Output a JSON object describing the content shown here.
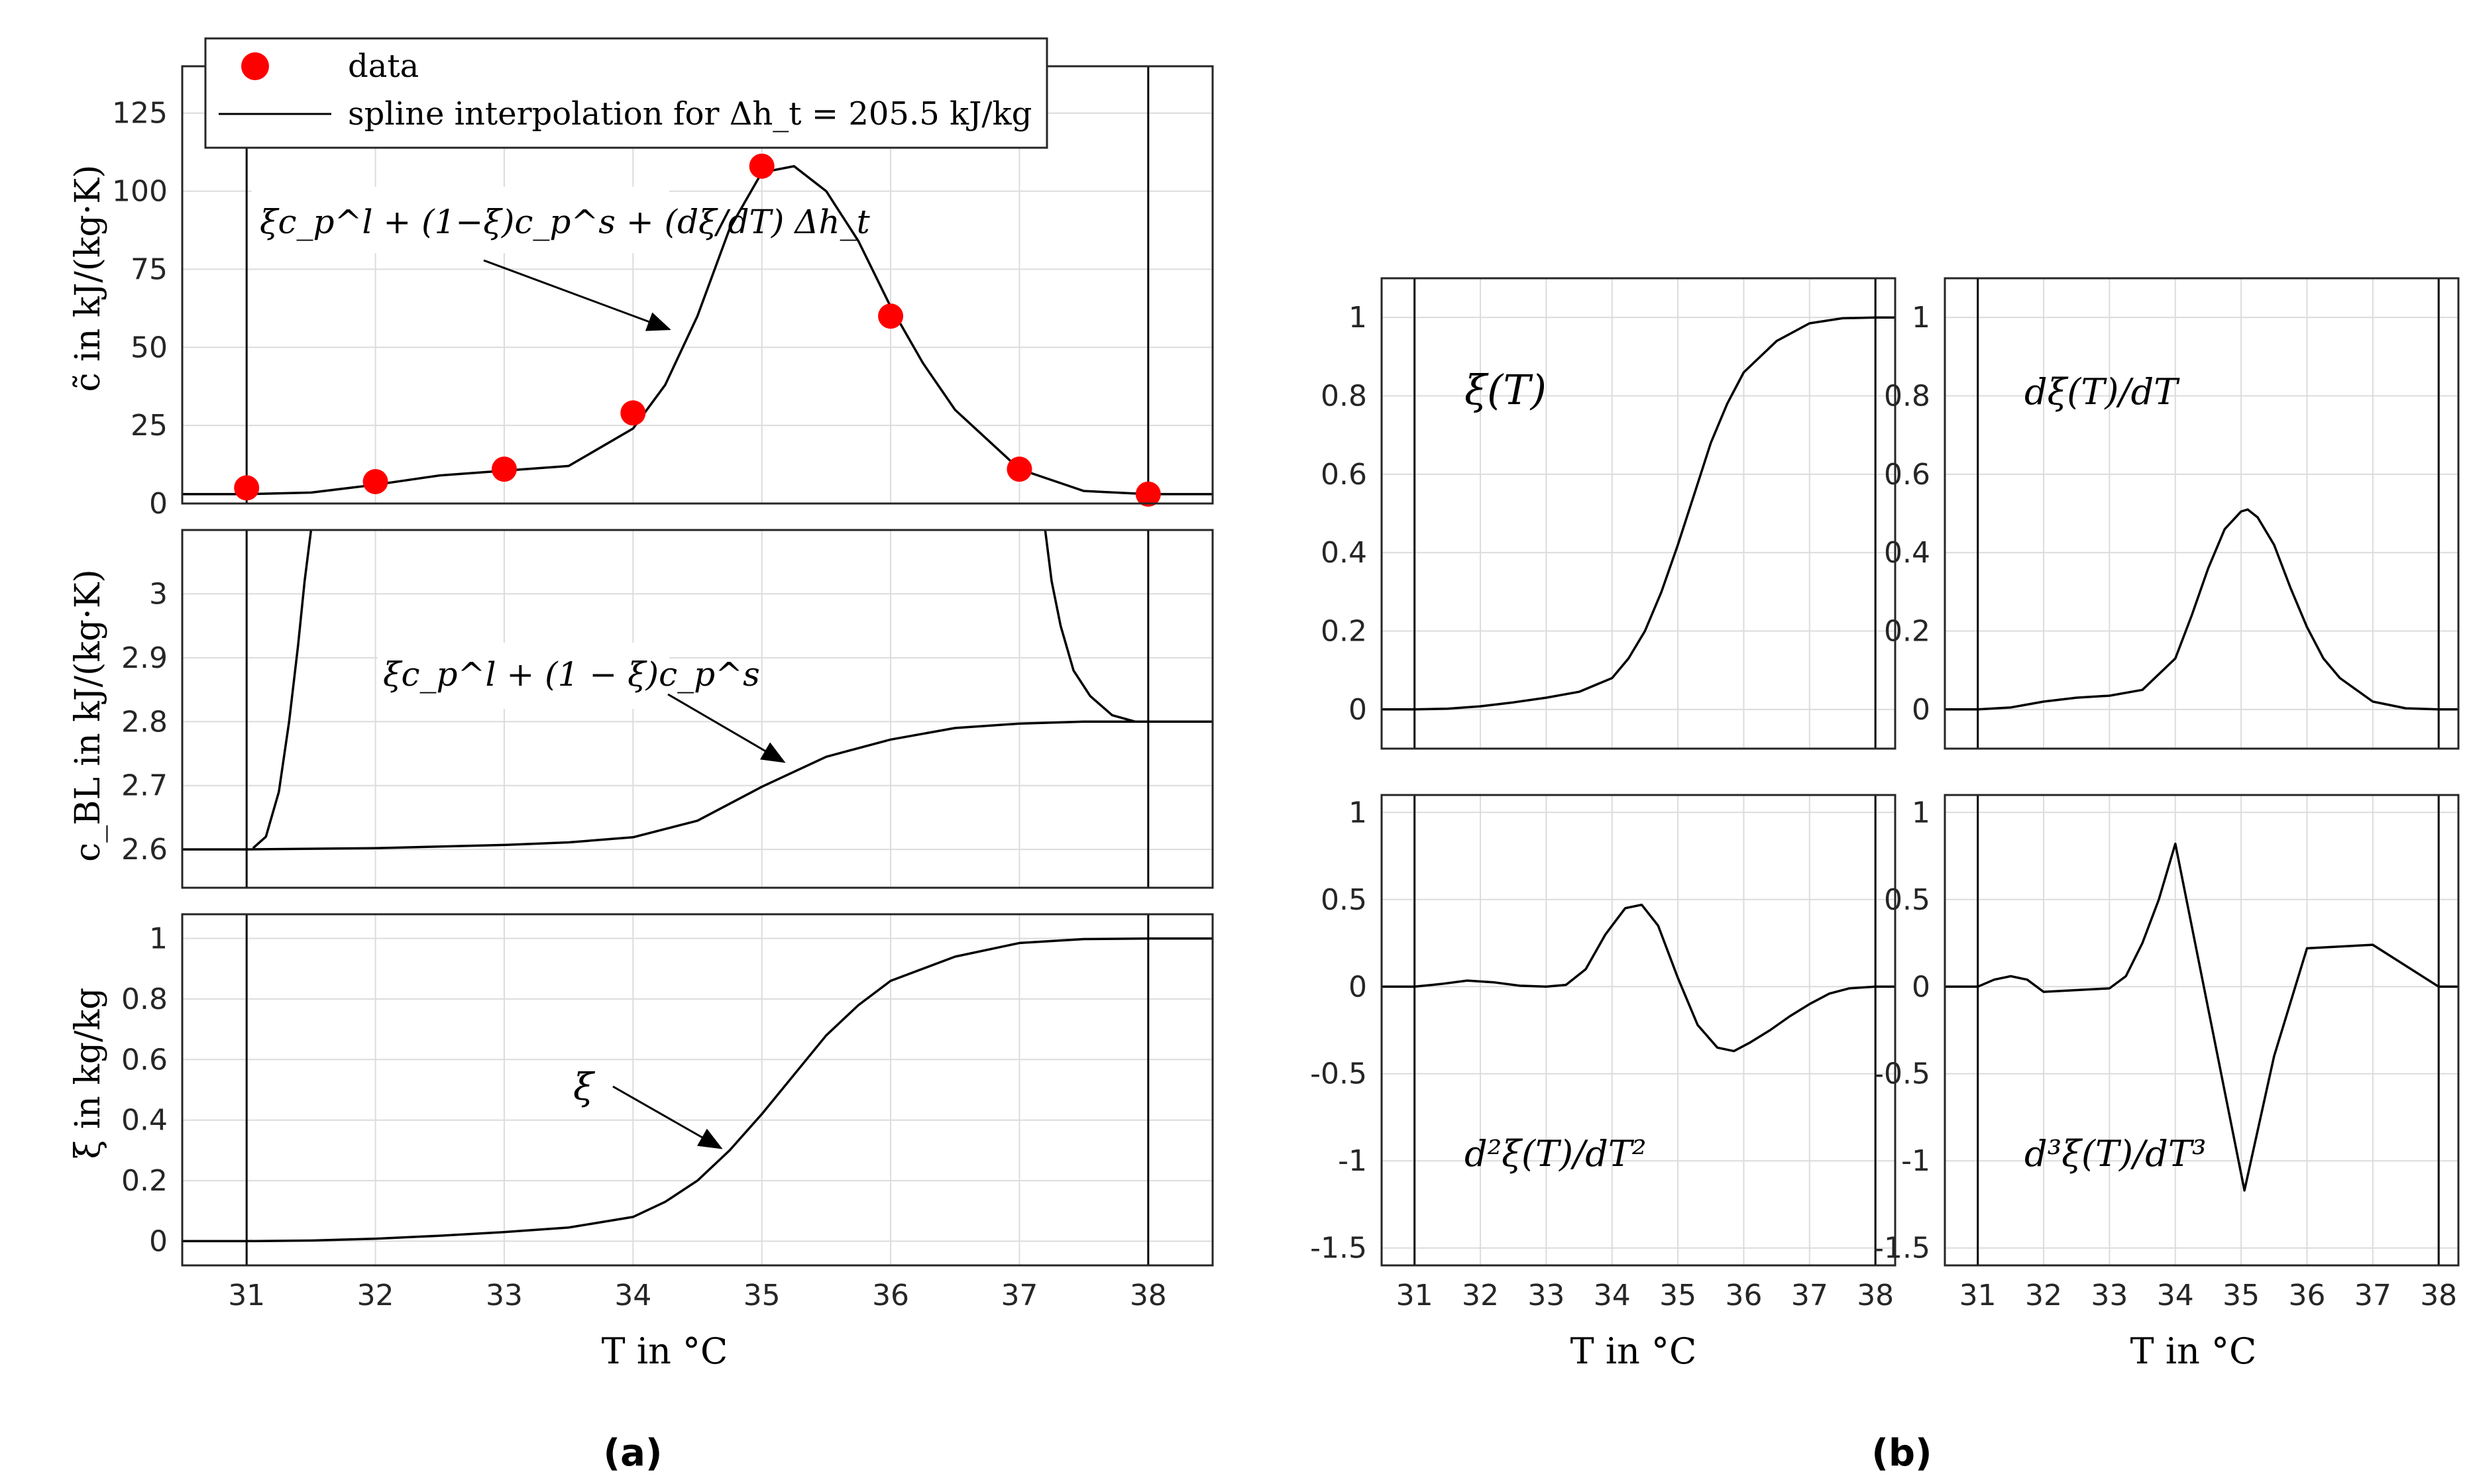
{
  "captions": {
    "a": "(a)",
    "b": "(b)"
  },
  "colors": {
    "data_marker": "#ff0000",
    "curve": "#000000",
    "grid": "#dcdcdc",
    "axes": "#262626"
  },
  "chart_data": [
    {
      "id": "a1",
      "type": "scatter+line",
      "ylabel": "c̃  in kJ/(kg·K)",
      "xlim": [
        30.5,
        38.5
      ],
      "ylim": [
        0,
        140
      ],
      "yticks": [
        0,
        25,
        50,
        75,
        100,
        125
      ],
      "xticks": [
        31,
        32,
        33,
        34,
        35,
        36,
        37,
        38
      ],
      "vlines": [
        31,
        38
      ],
      "legend": {
        "position": "top-left",
        "data": "data",
        "spline": "spline interpolation for Δh_t = 205.5 kJ/kg"
      },
      "annotation": "ξc_p^l + (1−ξ)c_p^s + (dξ/dT) Δh_t",
      "data_points": {
        "x": [
          31,
          32,
          33,
          34,
          35,
          36,
          37,
          38
        ],
        "y": [
          5,
          7,
          11,
          29,
          108,
          60,
          11,
          3
        ]
      },
      "series": [
        {
          "name": "spline interpolation",
          "x": [
            30.5,
            31,
            31.5,
            32,
            32.5,
            33,
            33.5,
            34,
            34.25,
            34.5,
            34.75,
            35,
            35.25,
            35.5,
            35.75,
            36,
            36.25,
            36.5,
            37,
            37.5,
            38,
            38.5
          ],
          "y": [
            3,
            3,
            3.5,
            6,
            9,
            10.5,
            12,
            24,
            38,
            60,
            88,
            106,
            108,
            100,
            84,
            63,
            45,
            30,
            11,
            4,
            3,
            3
          ]
        }
      ]
    },
    {
      "id": "a2",
      "type": "line",
      "ylabel": "c_BL in kJ/(kg·K)",
      "xlim": [
        30.5,
        38.5
      ],
      "ylim": [
        2.54,
        3.1
      ],
      "yticks": [
        2.6,
        2.7,
        2.8,
        2.9,
        3
      ],
      "yticklabels": [
        "2.6",
        "2.7",
        "2.8",
        "2.9",
        "3"
      ],
      "xticks": [
        31,
        32,
        33,
        34,
        35,
        36,
        37,
        38
      ],
      "vlines": [
        31,
        38
      ],
      "annotation": "ξc_p^l + (1 − ξ)c_p^s",
      "series": [
        {
          "name": "cBL",
          "x": [
            30.5,
            31,
            32,
            33,
            33.5,
            34,
            34.5,
            35,
            35.5,
            36,
            36.5,
            37,
            37.5,
            38,
            38.5
          ],
          "y": [
            2.6,
            2.6,
            2.602,
            2.607,
            2.611,
            2.619,
            2.645,
            2.698,
            2.745,
            2.772,
            2.79,
            2.797,
            2.8,
            2.8,
            2.8
          ]
        },
        {
          "name": "left rise",
          "x": [
            31.05,
            31.15,
            31.25,
            31.33,
            31.4,
            31.45,
            31.5
          ],
          "y": [
            2.602,
            2.62,
            2.69,
            2.8,
            2.92,
            3.02,
            3.1
          ]
        },
        {
          "name": "right fall",
          "x": [
            37.2,
            37.25,
            37.32,
            37.42,
            37.55,
            37.72,
            37.9
          ],
          "y": [
            3.1,
            3.02,
            2.95,
            2.88,
            2.84,
            2.81,
            2.8
          ]
        }
      ]
    },
    {
      "id": "a3",
      "type": "line",
      "ylabel": "ξ  in kg/kg",
      "xlabel": "T  in °C",
      "xlim": [
        30.5,
        38.5
      ],
      "ylim": [
        -0.08,
        1.08
      ],
      "yticks": [
        0,
        0.2,
        0.4,
        0.6,
        0.8,
        1
      ],
      "xticks": [
        31,
        32,
        33,
        34,
        35,
        36,
        37,
        38
      ],
      "vlines": [
        31,
        38
      ],
      "annotation": "ξ",
      "series": [
        {
          "name": "xi",
          "x": [
            30.5,
            31,
            31.5,
            32,
            32.5,
            33,
            33.5,
            34,
            34.25,
            34.5,
            34.75,
            35,
            35.25,
            35.5,
            35.75,
            36,
            36.5,
            37,
            37.5,
            38,
            38.5
          ],
          "y": [
            0,
            0,
            0.002,
            0.008,
            0.018,
            0.03,
            0.045,
            0.08,
            0.13,
            0.2,
            0.3,
            0.42,
            0.55,
            0.68,
            0.78,
            0.86,
            0.94,
            0.985,
            0.998,
            1,
            1
          ]
        }
      ]
    },
    {
      "id": "b1",
      "type": "line",
      "label": "ξ(T)",
      "xlim": [
        30.5,
        38.3
      ],
      "ylim": [
        -0.1,
        1.1
      ],
      "yticks": [
        0,
        0.2,
        0.4,
        0.6,
        0.8,
        1
      ],
      "xticks": [
        31,
        32,
        33,
        34,
        35,
        36,
        37,
        38
      ],
      "vlines": [
        31,
        38
      ],
      "series": [
        {
          "name": "xi",
          "x": [
            30.5,
            31,
            31.5,
            32,
            32.5,
            33,
            33.5,
            34,
            34.25,
            34.5,
            34.75,
            35,
            35.25,
            35.5,
            35.75,
            36,
            36.5,
            37,
            37.5,
            38,
            38.3
          ],
          "y": [
            0,
            0,
            0.002,
            0.008,
            0.018,
            0.03,
            0.045,
            0.08,
            0.13,
            0.2,
            0.3,
            0.42,
            0.55,
            0.68,
            0.78,
            0.86,
            0.94,
            0.985,
            0.998,
            1,
            1
          ]
        }
      ]
    },
    {
      "id": "b2",
      "type": "line",
      "label": "dξ(T)/dT",
      "xlim": [
        30.5,
        38.3
      ],
      "ylim": [
        -0.1,
        1.1
      ],
      "yticks": [
        0,
        0.2,
        0.4,
        0.6,
        0.8,
        1
      ],
      "xticks": [
        31,
        32,
        33,
        34,
        35,
        36,
        37,
        38
      ],
      "vlines": [
        31,
        38
      ],
      "series": [
        {
          "name": "dxi",
          "x": [
            30.5,
            31,
            31.5,
            32,
            32.5,
            33,
            33.5,
            34,
            34.25,
            34.5,
            34.75,
            35,
            35.1,
            35.25,
            35.5,
            35.75,
            36,
            36.25,
            36.5,
            37,
            37.5,
            38,
            38.3
          ],
          "y": [
            0,
            0,
            0.005,
            0.02,
            0.03,
            0.035,
            0.05,
            0.13,
            0.24,
            0.36,
            0.46,
            0.505,
            0.51,
            0.49,
            0.42,
            0.31,
            0.21,
            0.13,
            0.08,
            0.02,
            0.003,
            0,
            0
          ]
        }
      ]
    },
    {
      "id": "b3",
      "type": "line",
      "label": "d²ξ(T)/dT²",
      "xlim": [
        30.5,
        38.3
      ],
      "ylim": [
        -1.6,
        1.1
      ],
      "yticks": [
        -1.5,
        -1,
        -0.5,
        0,
        0.5,
        1
      ],
      "xticks": [
        31,
        32,
        33,
        34,
        35,
        36,
        37,
        38
      ],
      "xticklabels": [
        "31",
        "32",
        "33",
        "34",
        "35",
        "36",
        "37",
        "38"
      ],
      "xlabel": "T  in  °C",
      "vlines": [
        31,
        38
      ],
      "series": [
        {
          "name": "d2xi",
          "x": [
            30.5,
            31,
            31.4,
            31.8,
            32.2,
            32.6,
            33,
            33.3,
            33.6,
            33.9,
            34.2,
            34.45,
            34.7,
            35,
            35.3,
            35.6,
            35.85,
            36.1,
            36.4,
            36.7,
            37,
            37.3,
            37.6,
            38,
            38.3
          ],
          "y": [
            0,
            0,
            0.015,
            0.035,
            0.025,
            0.005,
            0,
            0.01,
            0.1,
            0.3,
            0.45,
            0.47,
            0.35,
            0.05,
            -0.22,
            -0.35,
            -0.37,
            -0.32,
            -0.25,
            -0.17,
            -0.1,
            -0.04,
            -0.01,
            0,
            0
          ]
        }
      ]
    },
    {
      "id": "b4",
      "type": "line",
      "label": "d³ξ(T)/dT³",
      "xlim": [
        30.5,
        38.3
      ],
      "ylim": [
        -1.6,
        1.1
      ],
      "yticks": [
        -1.5,
        -1,
        -0.5,
        0,
        0.5,
        1
      ],
      "xticks": [
        31,
        32,
        33,
        34,
        35,
        36,
        37,
        38
      ],
      "xticklabels": [
        "31",
        "32",
        "33",
        "34",
        "35",
        "36",
        "37",
        "38"
      ],
      "xlabel": "T  in  °C",
      "vlines": [
        31,
        38
      ],
      "series": [
        {
          "name": "d3xi",
          "x": [
            30.5,
            31,
            31.25,
            31.5,
            31.75,
            32,
            33,
            33.25,
            33.5,
            33.75,
            34,
            35.05,
            35.5,
            36,
            37,
            38,
            38.3
          ],
          "y": [
            0,
            0,
            0.04,
            0.06,
            0.04,
            -0.03,
            -0.01,
            0.06,
            0.25,
            0.5,
            0.82,
            -1.17,
            -0.4,
            0.22,
            0.24,
            0,
            0
          ]
        }
      ]
    }
  ]
}
